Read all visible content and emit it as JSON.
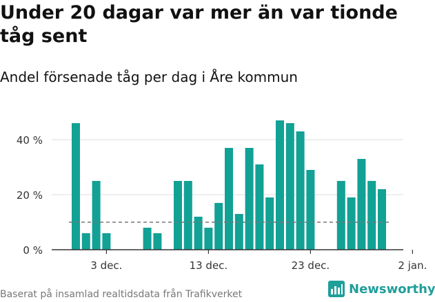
{
  "header": {
    "title": "Under 20 dagar var mer än var tionde tåg sent",
    "subtitle": "Andel försenade tåg per dag i Åre kommun"
  },
  "footer": {
    "source": "Baserat på insamlad realtidsdata från Trafikverket",
    "brand": "Newsworthy"
  },
  "colors": {
    "bar": "#12a195",
    "reference_line": "#777777",
    "grid": "#dddddd",
    "axis": "#333333",
    "brand": "#1f9e9a"
  },
  "icons": {
    "brand_logo": "newsworthy-logo-icon"
  },
  "chart_data": {
    "type": "bar",
    "start_date": "2019-11-30",
    "x_tick_labels": [
      {
        "label": "3 dec.",
        "date": "2019-12-03"
      },
      {
        "label": "13 dec.",
        "date": "2019-12-13"
      },
      {
        "label": "23 dec.",
        "date": "2019-12-23"
      },
      {
        "label": "2 jan.",
        "date": "2020-01-02"
      }
    ],
    "values": [
      46,
      6,
      25,
      6,
      null,
      null,
      null,
      8,
      6,
      null,
      25,
      25,
      12,
      8,
      17,
      37,
      13,
      37,
      31,
      19,
      47,
      46,
      43,
      29,
      null,
      null,
      25,
      19,
      33,
      25,
      22
    ],
    "reference_value": 10,
    "ylim": [
      0,
      50
    ],
    "y_ticks": [
      0,
      20,
      40
    ],
    "y_tick_format": "{v} %",
    "title": "Under 20 dagar var mer än var tionde tåg sent",
    "subtitle": "Andel försenade tåg per dag i Åre kommun"
  }
}
